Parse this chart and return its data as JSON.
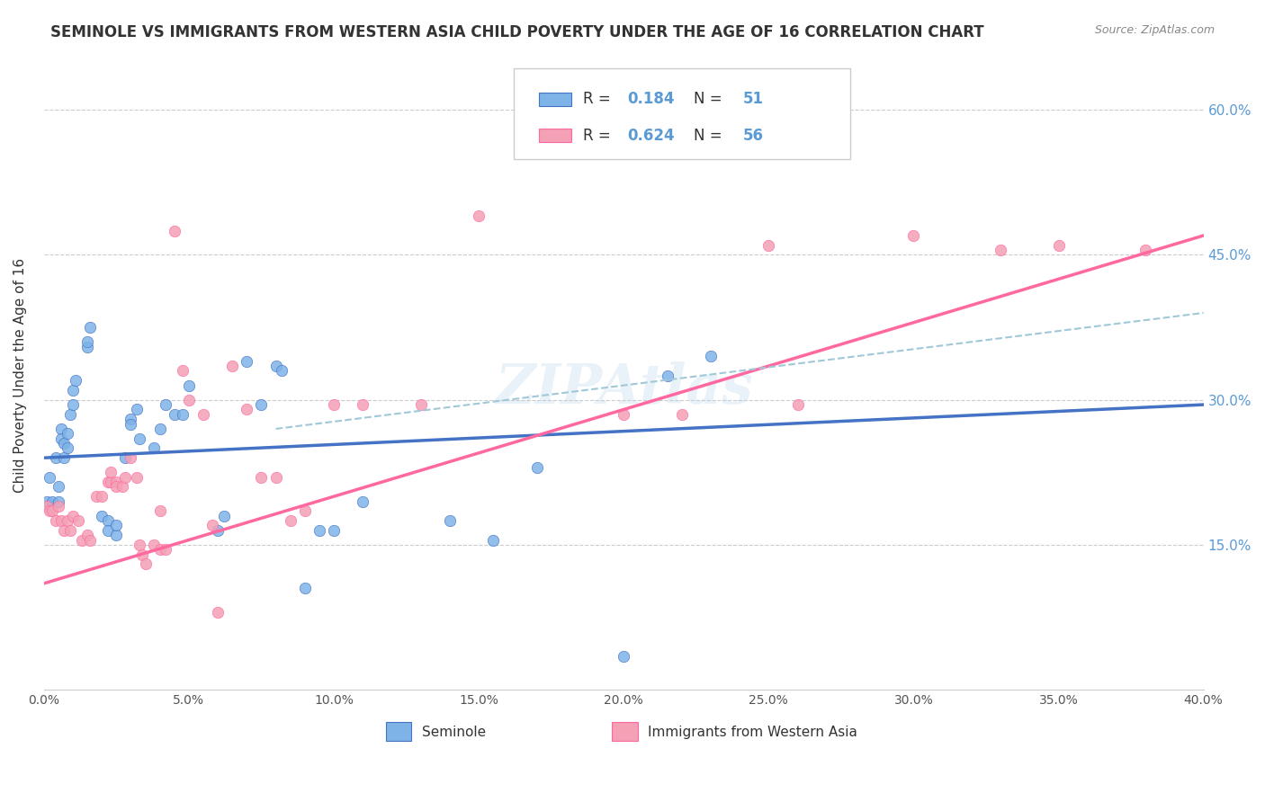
{
  "title": "SEMINOLE VS IMMIGRANTS FROM WESTERN ASIA CHILD POVERTY UNDER THE AGE OF 16 CORRELATION CHART",
  "source": "Source: ZipAtlas.com",
  "ylabel": "Child Poverty Under the Age of 16",
  "yaxis_labels": [
    "15.0%",
    "30.0%",
    "45.0%",
    "60.0%"
  ],
  "legend_label1": "Seminole",
  "legend_label2": "Immigrants from Western Asia",
  "R1": "0.184",
  "N1": "51",
  "R2": "0.624",
  "N2": "56",
  "color_blue": "#7EB3E8",
  "color_pink": "#F4A0B5",
  "color_blue_line": "#4472C4",
  "color_pink_line": "#FF69A0",
  "color_dashed_line": "#A0C8D8",
  "blue_scatter": [
    [
      0.001,
      0.195
    ],
    [
      0.002,
      0.22
    ],
    [
      0.003,
      0.195
    ],
    [
      0.004,
      0.24
    ],
    [
      0.005,
      0.195
    ],
    [
      0.005,
      0.21
    ],
    [
      0.006,
      0.27
    ],
    [
      0.006,
      0.26
    ],
    [
      0.007,
      0.255
    ],
    [
      0.007,
      0.24
    ],
    [
      0.008,
      0.265
    ],
    [
      0.008,
      0.25
    ],
    [
      0.009,
      0.285
    ],
    [
      0.01,
      0.31
    ],
    [
      0.01,
      0.295
    ],
    [
      0.011,
      0.32
    ],
    [
      0.015,
      0.355
    ],
    [
      0.015,
      0.36
    ],
    [
      0.016,
      0.375
    ],
    [
      0.02,
      0.18
    ],
    [
      0.022,
      0.175
    ],
    [
      0.022,
      0.165
    ],
    [
      0.025,
      0.16
    ],
    [
      0.025,
      0.17
    ],
    [
      0.028,
      0.24
    ],
    [
      0.03,
      0.28
    ],
    [
      0.03,
      0.275
    ],
    [
      0.032,
      0.29
    ],
    [
      0.033,
      0.26
    ],
    [
      0.038,
      0.25
    ],
    [
      0.04,
      0.27
    ],
    [
      0.042,
      0.295
    ],
    [
      0.045,
      0.285
    ],
    [
      0.048,
      0.285
    ],
    [
      0.05,
      0.315
    ],
    [
      0.06,
      0.165
    ],
    [
      0.062,
      0.18
    ],
    [
      0.07,
      0.34
    ],
    [
      0.075,
      0.295
    ],
    [
      0.08,
      0.335
    ],
    [
      0.082,
      0.33
    ],
    [
      0.09,
      0.105
    ],
    [
      0.095,
      0.165
    ],
    [
      0.1,
      0.165
    ],
    [
      0.11,
      0.195
    ],
    [
      0.14,
      0.175
    ],
    [
      0.155,
      0.155
    ],
    [
      0.17,
      0.23
    ],
    [
      0.2,
      0.035
    ],
    [
      0.215,
      0.325
    ],
    [
      0.23,
      0.345
    ]
  ],
  "pink_scatter": [
    [
      0.001,
      0.19
    ],
    [
      0.002,
      0.185
    ],
    [
      0.003,
      0.185
    ],
    [
      0.004,
      0.175
    ],
    [
      0.005,
      0.19
    ],
    [
      0.006,
      0.175
    ],
    [
      0.007,
      0.165
    ],
    [
      0.008,
      0.175
    ],
    [
      0.009,
      0.165
    ],
    [
      0.01,
      0.18
    ],
    [
      0.012,
      0.175
    ],
    [
      0.013,
      0.155
    ],
    [
      0.015,
      0.16
    ],
    [
      0.016,
      0.155
    ],
    [
      0.018,
      0.2
    ],
    [
      0.02,
      0.2
    ],
    [
      0.022,
      0.215
    ],
    [
      0.023,
      0.215
    ],
    [
      0.023,
      0.225
    ],
    [
      0.025,
      0.215
    ],
    [
      0.025,
      0.21
    ],
    [
      0.027,
      0.21
    ],
    [
      0.028,
      0.22
    ],
    [
      0.03,
      0.24
    ],
    [
      0.032,
      0.22
    ],
    [
      0.033,
      0.15
    ],
    [
      0.034,
      0.14
    ],
    [
      0.035,
      0.13
    ],
    [
      0.038,
      0.15
    ],
    [
      0.04,
      0.145
    ],
    [
      0.04,
      0.185
    ],
    [
      0.042,
      0.145
    ],
    [
      0.045,
      0.475
    ],
    [
      0.048,
      0.33
    ],
    [
      0.05,
      0.3
    ],
    [
      0.055,
      0.285
    ],
    [
      0.058,
      0.17
    ],
    [
      0.06,
      0.08
    ],
    [
      0.065,
      0.335
    ],
    [
      0.07,
      0.29
    ],
    [
      0.075,
      0.22
    ],
    [
      0.08,
      0.22
    ],
    [
      0.085,
      0.175
    ],
    [
      0.09,
      0.185
    ],
    [
      0.1,
      0.295
    ],
    [
      0.11,
      0.295
    ],
    [
      0.13,
      0.295
    ],
    [
      0.15,
      0.49
    ],
    [
      0.2,
      0.285
    ],
    [
      0.22,
      0.285
    ],
    [
      0.25,
      0.46
    ],
    [
      0.26,
      0.295
    ],
    [
      0.3,
      0.47
    ],
    [
      0.33,
      0.455
    ],
    [
      0.35,
      0.46
    ],
    [
      0.38,
      0.455
    ]
  ],
  "xmin": 0.0,
  "xmax": 0.4,
  "ymin": 0.0,
  "ymax": 0.65,
  "blue_trend_x": [
    0.0,
    0.4
  ],
  "blue_trend_y": [
    0.24,
    0.295
  ],
  "pink_trend_x": [
    0.0,
    0.4
  ],
  "pink_trend_y": [
    0.11,
    0.47
  ],
  "dashed_trend_x": [
    0.08,
    0.4
  ],
  "dashed_trend_y": [
    0.27,
    0.39
  ]
}
